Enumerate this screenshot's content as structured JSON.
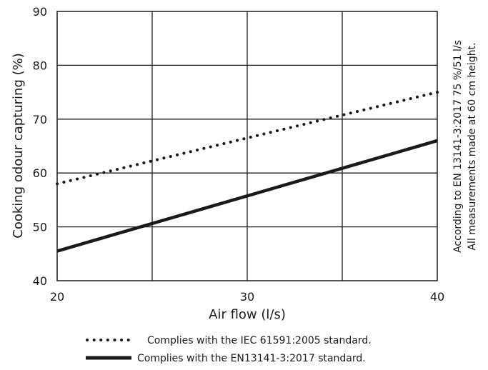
{
  "chart_data": {
    "type": "line",
    "xlabel": "Air flow (l/s)",
    "ylabel": "Cooking odour capturing (%)",
    "xlim": [
      20,
      40
    ],
    "ylim": [
      40,
      90
    ],
    "x_ticks": [
      "20",
      "30",
      "40"
    ],
    "y_ticks": [
      "40",
      "50",
      "60",
      "70",
      "80",
      "90"
    ],
    "grid": true,
    "series": [
      {
        "name": "Complies with the IEC 61591:2005 standard.",
        "style": "dotted",
        "color": "#1a1a1a",
        "x": [
          20,
          40
        ],
        "y": [
          58,
          75
        ]
      },
      {
        "name": "Complies with the EN13141-3:2017 standard.",
        "style": "solid",
        "color": "#1a1a1a",
        "x": [
          20,
          40
        ],
        "y": [
          45.5,
          66
        ]
      }
    ],
    "side_notes": [
      "According to EN 13141-3:2017 75 %/51 l/s",
      "All measurements made at 60 cm height."
    ],
    "legend_position": "bottom"
  }
}
